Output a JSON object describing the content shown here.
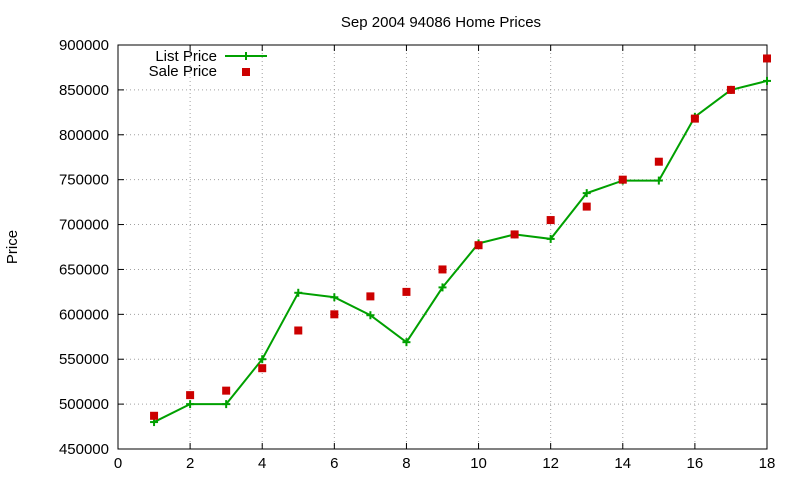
{
  "chart_data": {
    "type": "line",
    "title": "Sep 2004 94086 Home Prices",
    "xlabel": "",
    "ylabel": "Price",
    "xlim": [
      0,
      18
    ],
    "ylim": [
      450000,
      900000
    ],
    "x_ticks": [
      0,
      2,
      4,
      6,
      8,
      10,
      12,
      14,
      16,
      18
    ],
    "y_ticks": [
      450000,
      500000,
      550000,
      600000,
      650000,
      700000,
      750000,
      800000,
      850000,
      900000
    ],
    "grid": true,
    "legend_position": "top-left",
    "series": [
      {
        "name": "List Price",
        "style": "line-with-plus-markers",
        "color": "#00a000",
        "x": [
          1,
          2,
          3,
          4,
          5,
          6,
          7,
          8,
          9,
          10,
          11,
          12,
          13,
          14,
          15,
          16,
          17,
          18
        ],
        "values": [
          480000,
          500000,
          500000,
          550000,
          624000,
          619000,
          599000,
          569000,
          630000,
          679000,
          689000,
          684000,
          735000,
          749000,
          749000,
          820000,
          850000,
          860000
        ]
      },
      {
        "name": "Sale Price",
        "style": "square-points",
        "color": "#cc0000",
        "x": [
          1,
          2,
          3,
          4,
          5,
          6,
          7,
          8,
          9,
          10,
          11,
          12,
          13,
          14,
          15,
          16,
          17,
          18
        ],
        "values": [
          487000,
          510000,
          515000,
          540000,
          582000,
          600000,
          620000,
          625000,
          650000,
          677000,
          689000,
          705000,
          720000,
          750000,
          770000,
          818000,
          850000,
          885000
        ]
      }
    ]
  }
}
